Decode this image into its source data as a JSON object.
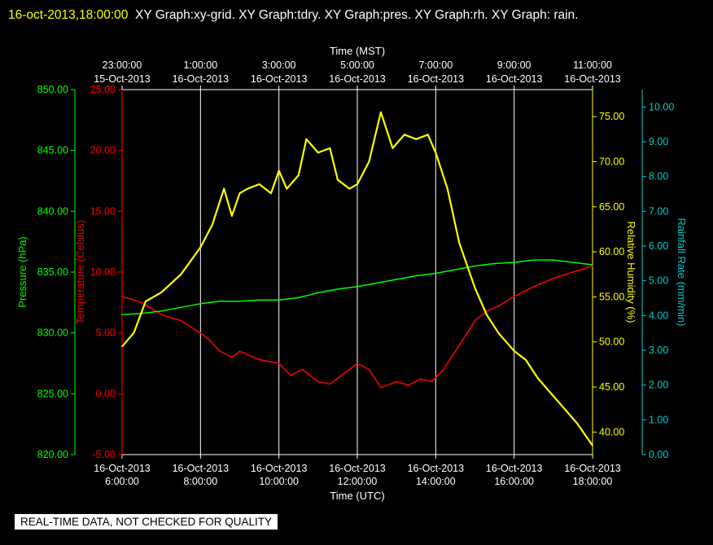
{
  "header": {
    "timestamp": "16-oct-2013,18:00:00",
    "title": "XY Graph:xy-grid.  XY Graph:tdry.  XY Graph:pres.  XY Graph:rh.  XY Graph: rain."
  },
  "notice": "REAL-TIME DATA, NOT CHECKED FOR QUALITY",
  "colors": {
    "background": "#000000",
    "temperature": "#ff0000",
    "pressure": "#00ff00",
    "humidity": "#ffff00",
    "rain": "#00cccc",
    "grid": "#ffffff",
    "text": "#ffffff"
  },
  "chart_data": {
    "type": "line",
    "grid": true,
    "x_bottom": {
      "label": "Time (UTC)",
      "ticks": [
        {
          "date": "16-Oct-2013",
          "time": "6:00:00",
          "hour": 6
        },
        {
          "date": "16-Oct-2013",
          "time": "8:00:00",
          "hour": 8
        },
        {
          "date": "16-Oct-2013",
          "time": "10:00:00",
          "hour": 10
        },
        {
          "date": "16-Oct-2013",
          "time": "12:00:00",
          "hour": 12
        },
        {
          "date": "16-Oct-2013",
          "time": "14:00:00",
          "hour": 14
        },
        {
          "date": "16-Oct-2013",
          "time": "16:00:00",
          "hour": 16
        },
        {
          "date": "16-Oct-2013",
          "time": "18:00:00",
          "hour": 18
        }
      ],
      "range": [
        "16-Oct-2013 6:00:00",
        "16-Oct-2013 18:00:00"
      ]
    },
    "x_top": {
      "label": "Time (MST)",
      "ticks": [
        {
          "date": "15-Oct-2013",
          "time": "23:00:00"
        },
        {
          "date": "16-Oct-2013",
          "time": "1:00:00"
        },
        {
          "date": "16-Oct-2013",
          "time": "3:00:00"
        },
        {
          "date": "16-Oct-2013",
          "time": "5:00:00"
        },
        {
          "date": "16-Oct-2013",
          "time": "7:00:00"
        },
        {
          "date": "16-Oct-2013",
          "time": "9:00:00"
        },
        {
          "date": "16-Oct-2013",
          "time": "11:00:00"
        }
      ]
    },
    "axes": {
      "pressure": {
        "label": "Pressure (hPa)",
        "range": [
          820,
          850
        ],
        "ticks": [
          "820.00",
          "825.00",
          "830.00",
          "835.00",
          "840.00",
          "845.00",
          "850.00"
        ]
      },
      "temperature": {
        "label": "Temperature (Celsius)",
        "range": [
          -5,
          25
        ],
        "ticks": [
          "-5.00",
          "0.00",
          "5.00",
          "10.00",
          "15.00",
          "20.00",
          "25.00"
        ]
      },
      "humidity": {
        "label": "Relative Humidity (%)",
        "range": [
          37.5,
          78
        ],
        "ticks": [
          "40.00",
          "45.00",
          "50.00",
          "55.00",
          "60.00",
          "65.00",
          "70.00",
          "75.00"
        ]
      },
      "rain": {
        "label": "Rainfall Rate (mm/min)",
        "range": [
          0,
          10.5
        ],
        "ticks": [
          "0.00",
          "1.00",
          "2.00",
          "3.00",
          "4.00",
          "5.00",
          "6.00",
          "7.00",
          "8.00",
          "9.00",
          "10.00"
        ]
      }
    },
    "series": [
      {
        "name": "Temperature (Celsius)",
        "axis": "temperature",
        "x": [
          6.0,
          6.5,
          7.0,
          7.5,
          8.0,
          8.2,
          8.5,
          8.8,
          9.0,
          9.5,
          10.0,
          10.3,
          10.6,
          11.0,
          11.3,
          11.6,
          12.0,
          12.3,
          12.6,
          13.0,
          13.3,
          13.6,
          13.9,
          14.2,
          14.5,
          14.8,
          15.0,
          15.3,
          15.6,
          16.0,
          16.5,
          17.0,
          17.5,
          18.0
        ],
        "values": [
          8.0,
          7.5,
          6.5,
          6.0,
          5.0,
          4.5,
          3.5,
          3.0,
          3.5,
          2.8,
          2.5,
          1.5,
          2.0,
          1.0,
          0.8,
          1.5,
          2.5,
          2.0,
          0.5,
          1.0,
          0.7,
          1.2,
          1.0,
          2.0,
          3.5,
          5.0,
          6.0,
          6.8,
          7.2,
          8.0,
          8.8,
          9.5,
          10.0,
          10.5
        ]
      },
      {
        "name": "Pressure (hPa)",
        "axis": "pressure",
        "x": [
          6.0,
          6.5,
          7.0,
          7.5,
          8.0,
          8.5,
          9.0,
          9.5,
          10.0,
          10.5,
          11.0,
          11.5,
          12.0,
          12.5,
          13.0,
          13.5,
          14.0,
          14.5,
          15.0,
          15.5,
          16.0,
          16.5,
          17.0,
          17.5,
          18.0
        ],
        "values": [
          831.5,
          831.6,
          831.8,
          832.1,
          832.4,
          832.6,
          832.6,
          832.7,
          832.7,
          832.9,
          833.3,
          833.6,
          833.8,
          834.1,
          834.4,
          834.7,
          834.9,
          835.2,
          835.5,
          835.7,
          835.8,
          836.0,
          836.0,
          835.8,
          835.6
        ]
      },
      {
        "name": "Relative Humidity (%)",
        "axis": "humidity",
        "x": [
          6.0,
          6.3,
          6.6,
          7.0,
          7.5,
          8.0,
          8.3,
          8.6,
          8.8,
          9.0,
          9.2,
          9.5,
          9.8,
          10.0,
          10.2,
          10.5,
          10.7,
          11.0,
          11.3,
          11.5,
          11.8,
          12.0,
          12.3,
          12.6,
          12.9,
          13.2,
          13.5,
          13.8,
          14.0,
          14.3,
          14.6,
          15.0,
          15.3,
          15.6,
          16.0,
          16.3,
          16.6,
          17.0,
          17.3,
          17.6,
          18.0
        ],
        "values": [
          49.5,
          51.0,
          54.5,
          55.5,
          57.5,
          60.5,
          63.0,
          67.0,
          64.0,
          66.5,
          67.0,
          67.5,
          66.5,
          69.0,
          67.0,
          68.5,
          72.5,
          71.0,
          71.5,
          68.0,
          67.0,
          67.5,
          70.0,
          75.5,
          71.5,
          73.0,
          72.5,
          73.0,
          71.0,
          67.0,
          61.0,
          56.0,
          53.0,
          51.0,
          49.0,
          48.0,
          46.0,
          44.0,
          42.5,
          41.0,
          38.5
        ]
      },
      {
        "name": "Rainfall Rate (mm/min)",
        "axis": "rain",
        "x": [
          6.0,
          18.0
        ],
        "values": [
          0.0,
          0.0
        ]
      }
    ]
  }
}
